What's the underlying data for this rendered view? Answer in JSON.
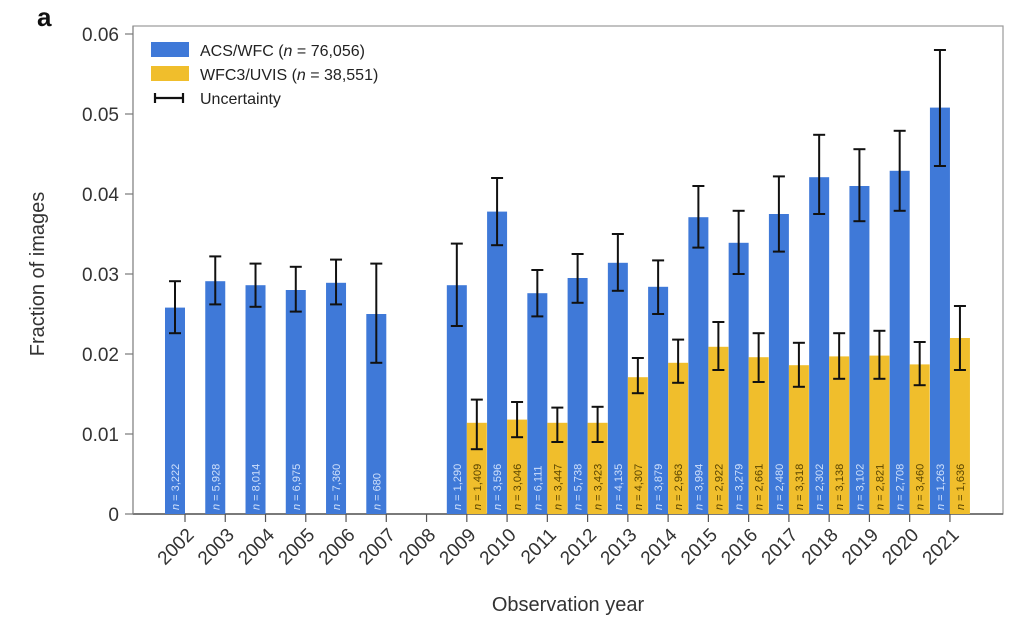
{
  "panel_label": "a",
  "chart_data": {
    "type": "bar",
    "title": "",
    "xlabel": "Observation year",
    "ylabel": "Fraction of images",
    "ylim": [
      0,
      0.06
    ],
    "yticks": [
      "0",
      "0.01",
      "0.02",
      "0.03",
      "0.04",
      "0.05",
      "0.06"
    ],
    "ytick_values": [
      0,
      0.01,
      0.02,
      0.03,
      0.04,
      0.05,
      0.06
    ],
    "grid": false,
    "legend_position": "top-left",
    "categories": [
      "2002",
      "2003",
      "2004",
      "2005",
      "2006",
      "2007",
      "2008",
      "2009",
      "2010",
      "2011",
      "2012",
      "2013",
      "2014",
      "2015",
      "2016",
      "2017",
      "2018",
      "2019",
      "2020",
      "2021"
    ],
    "legend": [
      {
        "label_main": "ACS/WFC (",
        "label_n": "n",
        "label_rest": " = 76,056)",
        "color": "#3f79d8"
      },
      {
        "label_main": "WFC3/UVIS (",
        "label_n": "n",
        "label_rest": " = 38,551)",
        "color": "#f0be2c"
      },
      {
        "label_main": "Uncertainty",
        "label_n": "",
        "label_rest": "",
        "color": "#111111"
      }
    ],
    "series": [
      {
        "name": "ACS/WFC (n = 76,056)",
        "color": "#3f79d8",
        "values": [
          0.0258,
          0.0291,
          0.0286,
          0.028,
          0.0289,
          0.025,
          null,
          0.0286,
          0.0378,
          0.0276,
          0.0295,
          0.0314,
          0.0284,
          0.0371,
          0.0339,
          0.0375,
          0.0421,
          0.041,
          0.0429,
          0.0508
        ],
        "err_low": [
          0.0226,
          0.0262,
          0.0259,
          0.0253,
          0.0262,
          0.0189,
          null,
          0.0235,
          0.0336,
          0.0247,
          0.0264,
          0.0279,
          0.025,
          0.0333,
          0.03,
          0.0328,
          0.0375,
          0.0366,
          0.0379,
          0.0435
        ],
        "err_high": [
          0.0291,
          0.0322,
          0.0313,
          0.0309,
          0.0318,
          0.0313,
          null,
          0.0338,
          0.042,
          0.0305,
          0.0325,
          0.035,
          0.0317,
          0.041,
          0.0379,
          0.0422,
          0.0474,
          0.0456,
          0.0479,
          0.058
        ],
        "n_labels": [
          "n = 3,222",
          "n = 5,928",
          "n = 8,014",
          "n = 6,975",
          "n = 7,360",
          "n = 680",
          null,
          "n = 1,290",
          "n = 3,596",
          "n = 6,111",
          "n = 5,738",
          "n = 4,135",
          "n = 3,879",
          "n = 3,994",
          "n = 3,279",
          "n = 2,480",
          "n = 2,302",
          "n = 3,102",
          "n = 2,708",
          "n = 1,263"
        ]
      },
      {
        "name": "WFC3/UVIS (n = 38,551)",
        "color": "#f0be2c",
        "values": [
          null,
          null,
          null,
          null,
          null,
          null,
          null,
          0.0114,
          0.0118,
          0.0114,
          0.0114,
          0.0171,
          0.0189,
          0.0209,
          0.0196,
          0.0186,
          0.0197,
          0.0198,
          0.0187,
          0.022
        ],
        "err_low": [
          null,
          null,
          null,
          null,
          null,
          null,
          null,
          0.0081,
          0.0096,
          0.009,
          0.009,
          0.0151,
          0.0164,
          0.018,
          0.0165,
          0.0159,
          0.0169,
          0.0169,
          0.0161,
          0.018
        ],
        "err_high": [
          null,
          null,
          null,
          null,
          null,
          null,
          null,
          0.0143,
          0.014,
          0.0133,
          0.0134,
          0.0195,
          0.0218,
          0.024,
          0.0226,
          0.0214,
          0.0226,
          0.0229,
          0.0215,
          0.026
        ],
        "n_labels": [
          null,
          null,
          null,
          null,
          null,
          null,
          null,
          "n = 1,409",
          "n = 3,046",
          "n = 3,447",
          "n = 3,423",
          "n = 4,307",
          "n = 2,963",
          "n = 2,922",
          "n = 2,661",
          "n = 3,318",
          "n = 3,138",
          "n = 2,821",
          "n = 3,460",
          "n = 1,636"
        ]
      }
    ]
  }
}
